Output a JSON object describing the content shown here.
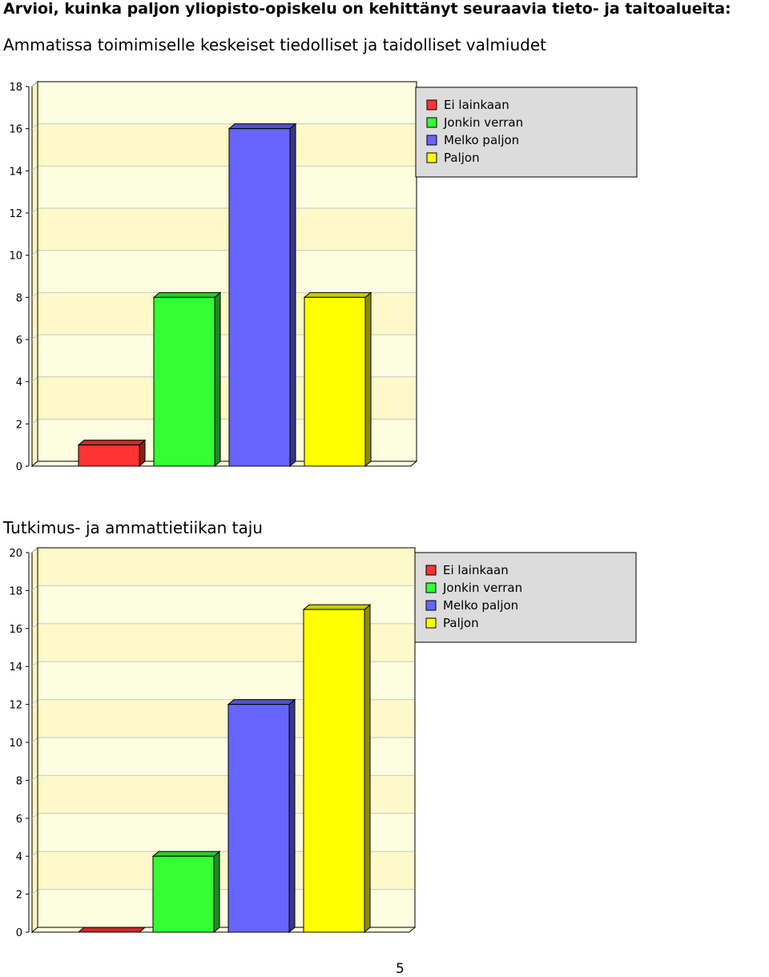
{
  "page": {
    "heading": "Arvioi, kuinka paljon yliopisto-opiskelu on kehittänyt seuraavia tieto- ja taitoalueita:",
    "page_number": "5"
  },
  "legend_colors": {
    "Ei lainkaan": "#ff3333",
    "Jonkin verran": "#33ff33",
    "Melko paljon": "#6666ff",
    "Paljon": "#ffff00"
  },
  "chart_data": [
    {
      "type": "bar",
      "title": "Ammatissa toimimiselle keskeiset tiedolliset ja taidolliset valmiudet",
      "categories": [
        "Ei lainkaan",
        "Jonkin verran",
        "Melko paljon",
        "Paljon"
      ],
      "values": [
        1,
        8,
        16,
        8
      ],
      "ylim": [
        0,
        18
      ],
      "yticks": [
        0,
        2,
        4,
        6,
        8,
        10,
        12,
        14,
        16,
        18
      ],
      "grid": true,
      "legend_position": "top-right",
      "legend": [
        "Ei lainkaan",
        "Jonkin verran",
        "Melko paljon",
        "Paljon"
      ]
    },
    {
      "type": "bar",
      "title": "Tutkimus- ja ammattietiikan taju",
      "categories": [
        "Ei lainkaan",
        "Jonkin verran",
        "Melko paljon",
        "Paljon"
      ],
      "values": [
        0,
        4,
        12,
        17
      ],
      "ylim": [
        0,
        20
      ],
      "yticks": [
        0,
        2,
        4,
        6,
        8,
        10,
        12,
        14,
        16,
        18,
        20
      ],
      "grid": true,
      "legend_position": "top-right",
      "legend": [
        "Ei lainkaan",
        "Jonkin verran",
        "Melko paljon",
        "Paljon"
      ]
    }
  ]
}
